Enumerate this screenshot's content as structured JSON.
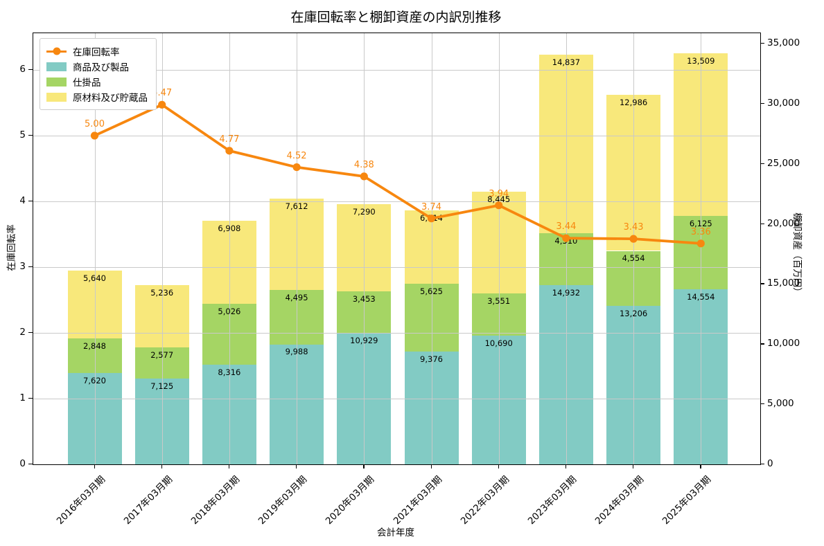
{
  "title": "在庫回転率と棚卸資産の内訳別推移",
  "colors": {
    "turnover_line": "#f7870f",
    "goods_products": "#82cbc4",
    "work_in_progress": "#a5d564",
    "raw_materials": "#f8e87b",
    "grid": "#c9c9c9",
    "bar_label_text": "#000000"
  },
  "legend": [
    {
      "key": "turnover",
      "marker": "line",
      "label": "在庫回転率"
    },
    {
      "key": "goods",
      "marker": "patch",
      "label": "商品及び製品"
    },
    {
      "key": "wip",
      "marker": "patch",
      "label": "仕掛品"
    },
    {
      "key": "raw",
      "marker": "patch",
      "label": "原材料及び貯蔵品"
    }
  ],
  "chart_data": {
    "type": "bar",
    "subtype": "stacked-bars-with-line",
    "title": "在庫回転率と棚卸資産の内訳別推移",
    "xlabel": "会計年度",
    "ylabel_left": "在庫回転率",
    "ylabel_right": "棚卸資産（百万円）",
    "categories": [
      "2016年03月期",
      "2017年03月期",
      "2018年03月期",
      "2019年03月期",
      "2020年03月期",
      "2021年03月期",
      "2022年03月期",
      "2023年03月期",
      "2024年03月期",
      "2025年03月期"
    ],
    "series": [
      {
        "name": "商品及び製品",
        "axis": "right",
        "render": "bar",
        "values": [
          7620,
          7125,
          8316,
          9988,
          10929,
          9376,
          10690,
          14932,
          13206,
          14554
        ]
      },
      {
        "name": "仕掛品",
        "axis": "right",
        "render": "bar",
        "values": [
          2848,
          2577,
          5026,
          4495,
          3453,
          5625,
          3551,
          4310,
          4554,
          6125
        ]
      },
      {
        "name": "原材料及び貯蔵品",
        "axis": "right",
        "render": "bar",
        "values": [
          5640,
          5236,
          6908,
          7612,
          7290,
          6114,
          8445,
          14837,
          12986,
          13509
        ]
      },
      {
        "name": "在庫回転率",
        "axis": "left",
        "render": "line",
        "values": [
          5.0,
          5.47,
          4.77,
          4.52,
          4.38,
          3.74,
          3.94,
          3.44,
          3.43,
          3.36
        ]
      }
    ],
    "yticks_left": [
      0,
      1,
      2,
      3,
      4,
      5,
      6
    ],
    "yticks_right": [
      0,
      5000,
      10000,
      15000,
      20000,
      25000,
      30000,
      35000
    ],
    "ylim_left": [
      0,
      6.56
    ],
    "ylim_right": [
      0,
      35863
    ],
    "grid": true,
    "legend_position": "upper-left"
  }
}
